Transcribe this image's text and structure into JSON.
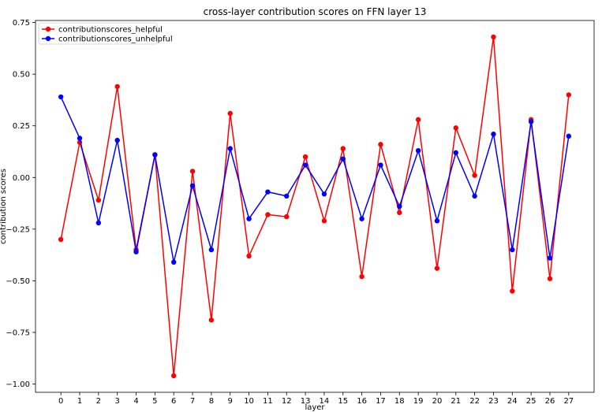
{
  "chart_data": {
    "type": "line",
    "title": "cross-layer contribution scores on FFN layer 13",
    "xlabel": "layer",
    "ylabel": "contribution scores",
    "x": [
      0,
      1,
      2,
      3,
      4,
      5,
      6,
      7,
      8,
      9,
      10,
      11,
      12,
      13,
      14,
      15,
      16,
      17,
      18,
      19,
      20,
      21,
      22,
      23,
      24,
      25,
      26,
      27
    ],
    "xlim": [
      -1.35,
      28.35
    ],
    "ylim": [
      -1.04,
      0.76
    ],
    "yticks": [
      0.75,
      0.5,
      0.25,
      0.0,
      -0.25,
      -0.5,
      -0.75,
      -1.0
    ],
    "ytick_labels": [
      "0.75",
      "0.50",
      "0.25",
      "0.00",
      "−0.25",
      "−0.50",
      "−0.75",
      "−1.00"
    ],
    "grid": false,
    "legend_position": "upper-left",
    "series": [
      {
        "name": "contributionscores_helpful",
        "color": "#ff0000",
        "values": [
          -0.3,
          0.17,
          -0.11,
          0.44,
          -0.35,
          0.11,
          -0.96,
          0.03,
          -0.69,
          0.31,
          -0.38,
          -0.18,
          -0.19,
          0.1,
          -0.21,
          0.14,
          -0.48,
          0.16,
          -0.17,
          0.28,
          -0.44,
          0.24,
          0.01,
          0.68,
          -0.55,
          0.28,
          -0.49,
          0.4
        ]
      },
      {
        "name": "contributionscores_unhelpful",
        "color": "#0000ff",
        "values": [
          0.39,
          0.19,
          -0.22,
          0.18,
          -0.36,
          0.11,
          -0.41,
          -0.04,
          -0.35,
          0.14,
          -0.2,
          -0.07,
          -0.09,
          0.06,
          -0.08,
          0.09,
          -0.2,
          0.06,
          -0.14,
          0.13,
          -0.21,
          0.12,
          -0.09,
          0.21,
          -0.35,
          0.27,
          -0.39,
          0.2
        ]
      }
    ]
  }
}
